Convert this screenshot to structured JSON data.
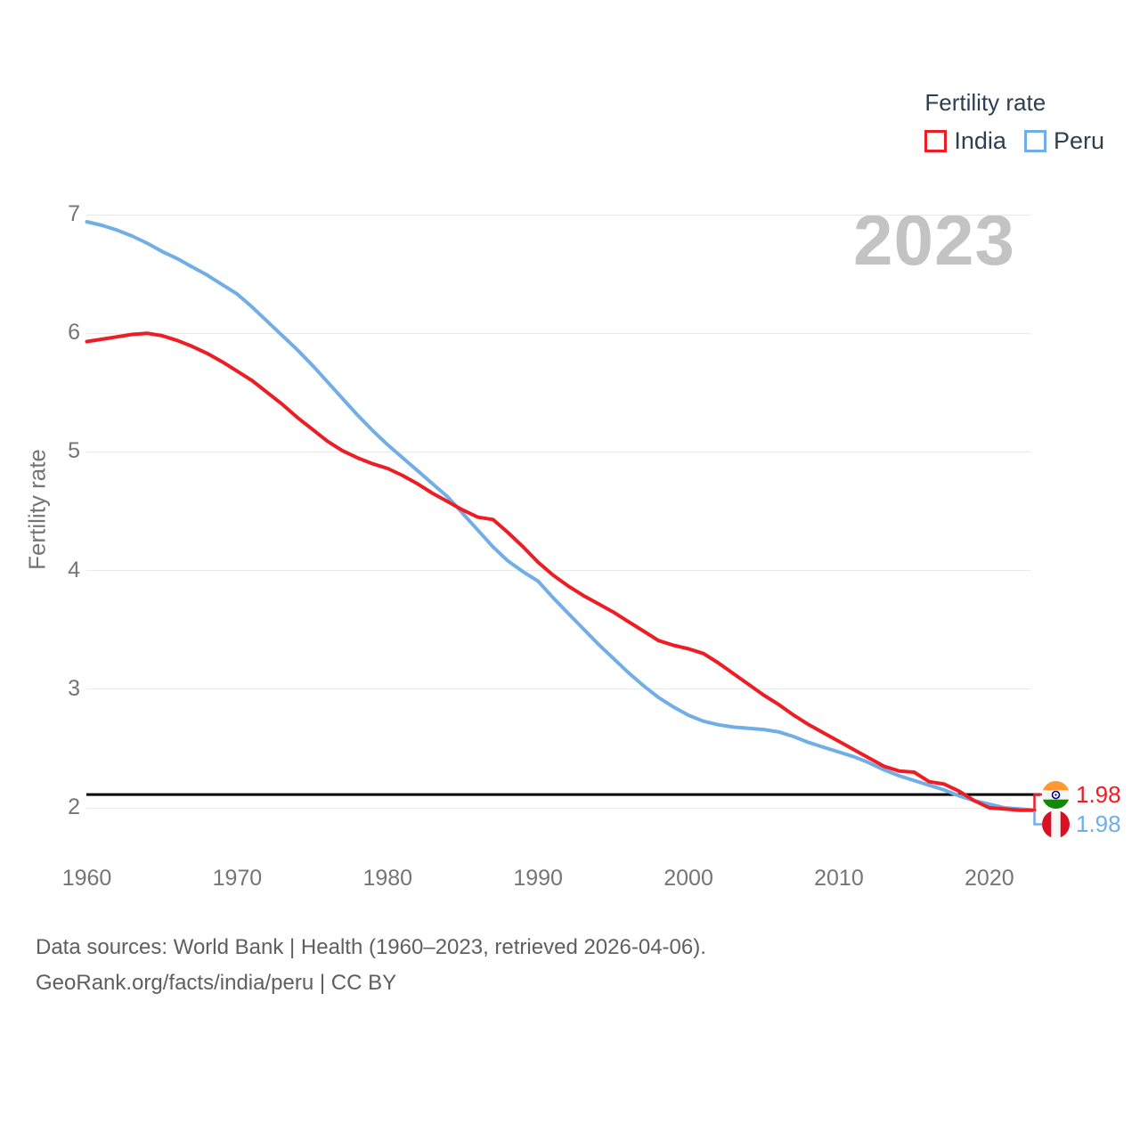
{
  "legend": {
    "title": "Fertility rate",
    "items": [
      {
        "label": "India",
        "color": "#ee1d23"
      },
      {
        "label": "Peru",
        "color": "#72aee6"
      }
    ]
  },
  "watermark": "2023",
  "axes": {
    "y_label": "Fertility rate",
    "y_ticks": [
      7,
      6,
      5,
      4,
      3,
      2
    ],
    "x_ticks": [
      1960,
      1970,
      1980,
      1990,
      2000,
      2010,
      2020
    ]
  },
  "end_labels": [
    {
      "series": "India",
      "value": "1.98",
      "icon": "india-flag-icon",
      "color": "#ee1d23"
    },
    {
      "series": "Peru",
      "value": "1.98",
      "icon": "peru-flag-icon",
      "color": "#72aee6"
    }
  ],
  "footer": {
    "line1": "Data sources: World Bank | Health (1960–2023, retrieved 2026-04-06).",
    "line2": "GeoRank.org/facts/india/peru | CC BY"
  },
  "chart_data": {
    "type": "line",
    "title": "Fertility rate",
    "xlabel": "",
    "ylabel": "Fertility rate",
    "xlim": [
      1960,
      2023
    ],
    "ylim": [
      2,
      7
    ],
    "grid": "horizontal-only",
    "legend_position": "top-right",
    "watermark_year": "2023",
    "reference_line": {
      "value": 2.1,
      "color": "#000000"
    },
    "x": [
      1960,
      1961,
      1962,
      1963,
      1964,
      1965,
      1966,
      1967,
      1968,
      1969,
      1970,
      1971,
      1972,
      1973,
      1974,
      1975,
      1976,
      1977,
      1978,
      1979,
      1980,
      1981,
      1982,
      1983,
      1984,
      1985,
      1986,
      1987,
      1988,
      1989,
      1990,
      1991,
      1992,
      1993,
      1994,
      1995,
      1996,
      1997,
      1998,
      1999,
      2000,
      2001,
      2002,
      2003,
      2004,
      2005,
      2006,
      2007,
      2008,
      2009,
      2010,
      2011,
      2012,
      2013,
      2014,
      2015,
      2016,
      2017,
      2018,
      2019,
      2020,
      2021,
      2022,
      2023
    ],
    "series": [
      {
        "name": "India",
        "color": "#ee1d23",
        "end_value": 1.98,
        "values": [
          5.93,
          5.95,
          5.97,
          5.99,
          6.0,
          5.98,
          5.94,
          5.89,
          5.83,
          5.76,
          5.68,
          5.6,
          5.5,
          5.4,
          5.29,
          5.19,
          5.09,
          5.01,
          4.95,
          4.9,
          4.86,
          4.8,
          4.73,
          4.65,
          4.58,
          4.51,
          4.45,
          4.43,
          4.32,
          4.2,
          4.07,
          3.96,
          3.87,
          3.79,
          3.72,
          3.65,
          3.57,
          3.49,
          3.41,
          3.37,
          3.34,
          3.3,
          3.22,
          3.13,
          3.04,
          2.95,
          2.87,
          2.78,
          2.7,
          2.63,
          2.56,
          2.49,
          2.42,
          2.35,
          2.31,
          2.3,
          2.22,
          2.2,
          2.14,
          2.06,
          2.0,
          1.99,
          1.98,
          1.98
        ]
      },
      {
        "name": "Peru",
        "color": "#72aee6",
        "end_value": 1.98,
        "values": [
          6.94,
          6.91,
          6.87,
          6.82,
          6.76,
          6.69,
          6.63,
          6.56,
          6.49,
          6.41,
          6.33,
          6.22,
          6.1,
          5.98,
          5.86,
          5.73,
          5.59,
          5.45,
          5.31,
          5.18,
          5.06,
          4.95,
          4.84,
          4.73,
          4.62,
          4.48,
          4.34,
          4.2,
          4.08,
          3.99,
          3.91,
          3.77,
          3.64,
          3.51,
          3.38,
          3.26,
          3.14,
          3.03,
          2.93,
          2.85,
          2.78,
          2.73,
          2.7,
          2.68,
          2.67,
          2.66,
          2.64,
          2.6,
          2.55,
          2.51,
          2.47,
          2.43,
          2.38,
          2.32,
          2.27,
          2.23,
          2.19,
          2.15,
          2.1,
          2.06,
          2.03,
          2.0,
          1.99,
          1.98
        ]
      }
    ]
  }
}
